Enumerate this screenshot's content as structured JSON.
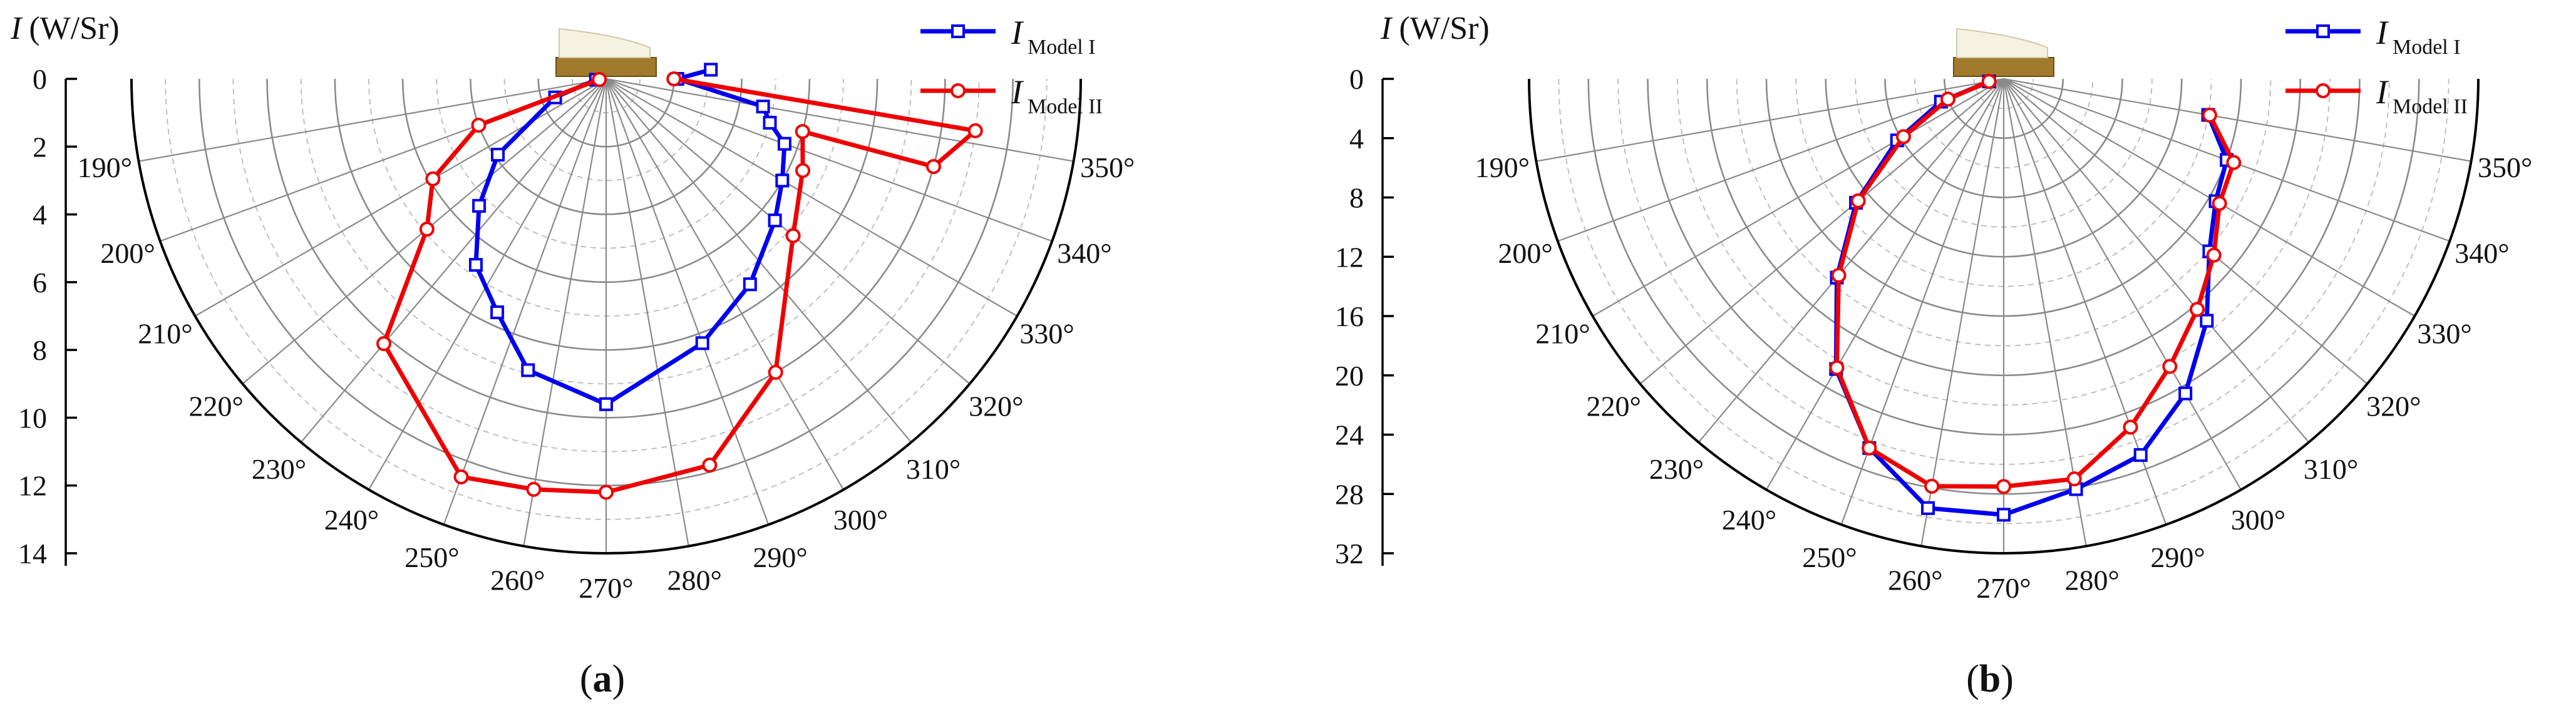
{
  "chart_data": [
    {
      "type": "polar-line",
      "panel_label": "a",
      "radial_axis_label_italic": "I",
      "radial_axis_label_unit": "(W/Sr)",
      "rmax": 14,
      "radial_ticks": [
        0,
        2,
        4,
        6,
        8,
        10,
        12,
        14
      ],
      "angle_range": [
        180,
        360
      ],
      "angle_labels": [
        "190°",
        "200°",
        "210°",
        "220°",
        "230°",
        "240°",
        "250°",
        "260°",
        "270°",
        "280°",
        "290°",
        "300°",
        "310°",
        "320°",
        "330°",
        "340°",
        "350°"
      ],
      "angle_values": [
        190,
        200,
        210,
        220,
        230,
        240,
        250,
        260,
        270,
        280,
        290,
        300,
        310,
        320,
        330,
        340,
        350
      ],
      "grid": true,
      "legend_position": "top-right",
      "series": [
        {
          "name_italic": "I",
          "name_sub": "Model I",
          "color": "#0000ee",
          "marker": "square",
          "points": [
            [
              185,
              0.3
            ],
            [
              200,
              1.6
            ],
            [
              215,
              3.9
            ],
            [
              225,
              5.3
            ],
            [
              235,
              6.7
            ],
            [
              245,
              7.6
            ],
            [
              255,
              8.9
            ],
            [
              270,
              9.6
            ],
            [
              290,
              8.3
            ],
            [
              305,
              7.4
            ],
            [
              320,
              6.5
            ],
            [
              330,
              6.0
            ],
            [
              340,
              5.6
            ],
            [
              345,
              5.0
            ],
            [
              350,
              4.7
            ],
            [
              360,
              2.1
            ],
            [
              365,
              3.1
            ]
          ]
        },
        {
          "name_italic": "I",
          "name_sub": "Model II",
          "color": "#ee0000",
          "marker": "circle",
          "points": [
            [
              185,
              0.2
            ],
            [
              200,
              4.0
            ],
            [
              210,
              5.9
            ],
            [
              220,
              6.9
            ],
            [
              230,
              10.2
            ],
            [
              250,
              12.5
            ],
            [
              260,
              12.3
            ],
            [
              270,
              12.2
            ],
            [
              285,
              11.8
            ],
            [
              300,
              10.0
            ],
            [
              320,
              7.2
            ],
            [
              335,
              6.4
            ],
            [
              345,
              6.0
            ],
            [
              345,
              10.0
            ],
            [
              352,
              11.0
            ],
            [
              360,
              2.0
            ]
          ]
        }
      ]
    },
    {
      "type": "polar-line",
      "panel_label": "b",
      "radial_axis_label_italic": "I",
      "radial_axis_label_unit": "(W/Sr)",
      "rmax": 32,
      "radial_ticks": [
        0,
        4,
        8,
        12,
        16,
        20,
        24,
        28,
        32
      ],
      "angle_range": [
        180,
        360
      ],
      "angle_labels": [
        "190°",
        "200°",
        "210°",
        "220°",
        "230°",
        "240°",
        "250°",
        "260°",
        "270°",
        "280°",
        "290°",
        "300°",
        "310°",
        "320°",
        "330°",
        "340°",
        "350°"
      ],
      "angle_values": [
        190,
        200,
        210,
        220,
        230,
        240,
        250,
        260,
        270,
        280,
        290,
        300,
        310,
        320,
        330,
        340,
        350
      ],
      "grid": true,
      "legend_position": "top-right",
      "series": [
        {
          "name_italic": "I",
          "name_sub": "Model I",
          "color": "#0000ee",
          "marker": "square",
          "points": [
            [
              190,
              1.0
            ],
            [
              200,
              4.5
            ],
            [
              210,
              8.3
            ],
            [
              220,
              13.0
            ],
            [
              230,
              17.5
            ],
            [
              240,
              22.6
            ],
            [
              250,
              26.5
            ],
            [
              260,
              29.4
            ],
            [
              270,
              29.4
            ],
            [
              280,
              28.1
            ],
            [
              290,
              27.0
            ],
            [
              300,
              24.5
            ],
            [
              310,
              21.3
            ],
            [
              320,
              18.1
            ],
            [
              330,
              16.5
            ],
            [
              340,
              16.0
            ],
            [
              350,
              14.0
            ]
          ]
        },
        {
          "name_italic": "I",
          "name_sub": "Model II",
          "color": "#ee0000",
          "marker": "circle",
          "points": [
            [
              190,
              1.0
            ],
            [
              200,
              4.0
            ],
            [
              210,
              7.8
            ],
            [
              220,
              12.8
            ],
            [
              230,
              17.3
            ],
            [
              240,
              22.5
            ],
            [
              250,
              26.5
            ],
            [
              260,
              27.9
            ],
            [
              270,
              27.5
            ],
            [
              280,
              27.4
            ],
            [
              290,
              25.0
            ],
            [
              300,
              22.4
            ],
            [
              310,
              20.3
            ],
            [
              320,
              18.5
            ],
            [
              330,
              16.8
            ],
            [
              340,
              16.5
            ],
            [
              350,
              14.1
            ]
          ]
        }
      ]
    }
  ]
}
